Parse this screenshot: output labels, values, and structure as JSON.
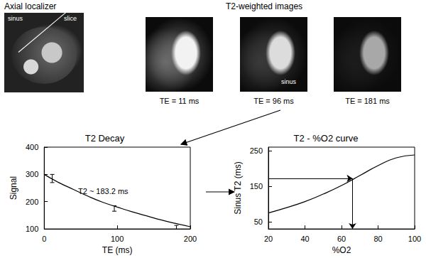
{
  "localizer": {
    "title": "Axial localizer",
    "labels": [
      "sinus",
      "slice"
    ]
  },
  "t2_images": {
    "title": "T2-weighted images",
    "images": [
      {
        "label": "TE = 11 ms"
      },
      {
        "label": "TE = 96 ms",
        "annotation": "sinus"
      },
      {
        "label": "TE = 181 ms"
      }
    ]
  },
  "chart_data": [
    {
      "type": "scatter",
      "title": "T2 Decay",
      "x_label": "TE (ms)",
      "y_label": "Signal",
      "annotation": "T2 ~ 183.2 ms",
      "x": [
        11,
        96,
        181
      ],
      "values": [
        285,
        175,
        105
      ],
      "errors": [
        15,
        10,
        8
      ],
      "fit": {
        "x": [
          0,
          20,
          40,
          60,
          80,
          100,
          120,
          140,
          160,
          180,
          200
        ],
        "values": [
          300,
          270,
          245,
          220,
          198,
          180,
          163,
          148,
          133,
          120,
          108
        ]
      },
      "xlim": [
        0,
        200
      ],
      "xticks": [
        0,
        100,
        200
      ],
      "ylim": [
        100,
        400
      ],
      "yticks": [
        100,
        200,
        300,
        400
      ],
      "grid": false,
      "color": "#000000"
    },
    {
      "type": "line",
      "title": "T2 - %O2 curve",
      "x_label": "%O2",
      "y_label": "Sinus T2 (ms)",
      "x": [
        20,
        30,
        40,
        50,
        60,
        70,
        80,
        90,
        100
      ],
      "values": [
        75,
        90,
        107,
        128,
        152,
        180,
        208,
        230,
        238
      ],
      "readout": {
        "x": 66,
        "y": 172
      },
      "xlim": [
        20,
        100
      ],
      "xticks": [
        20,
        40,
        60,
        80,
        100
      ],
      "ylim": [
        30,
        260
      ],
      "yticks": [
        50,
        150,
        250
      ],
      "grid": false,
      "color": "#000000"
    }
  ]
}
